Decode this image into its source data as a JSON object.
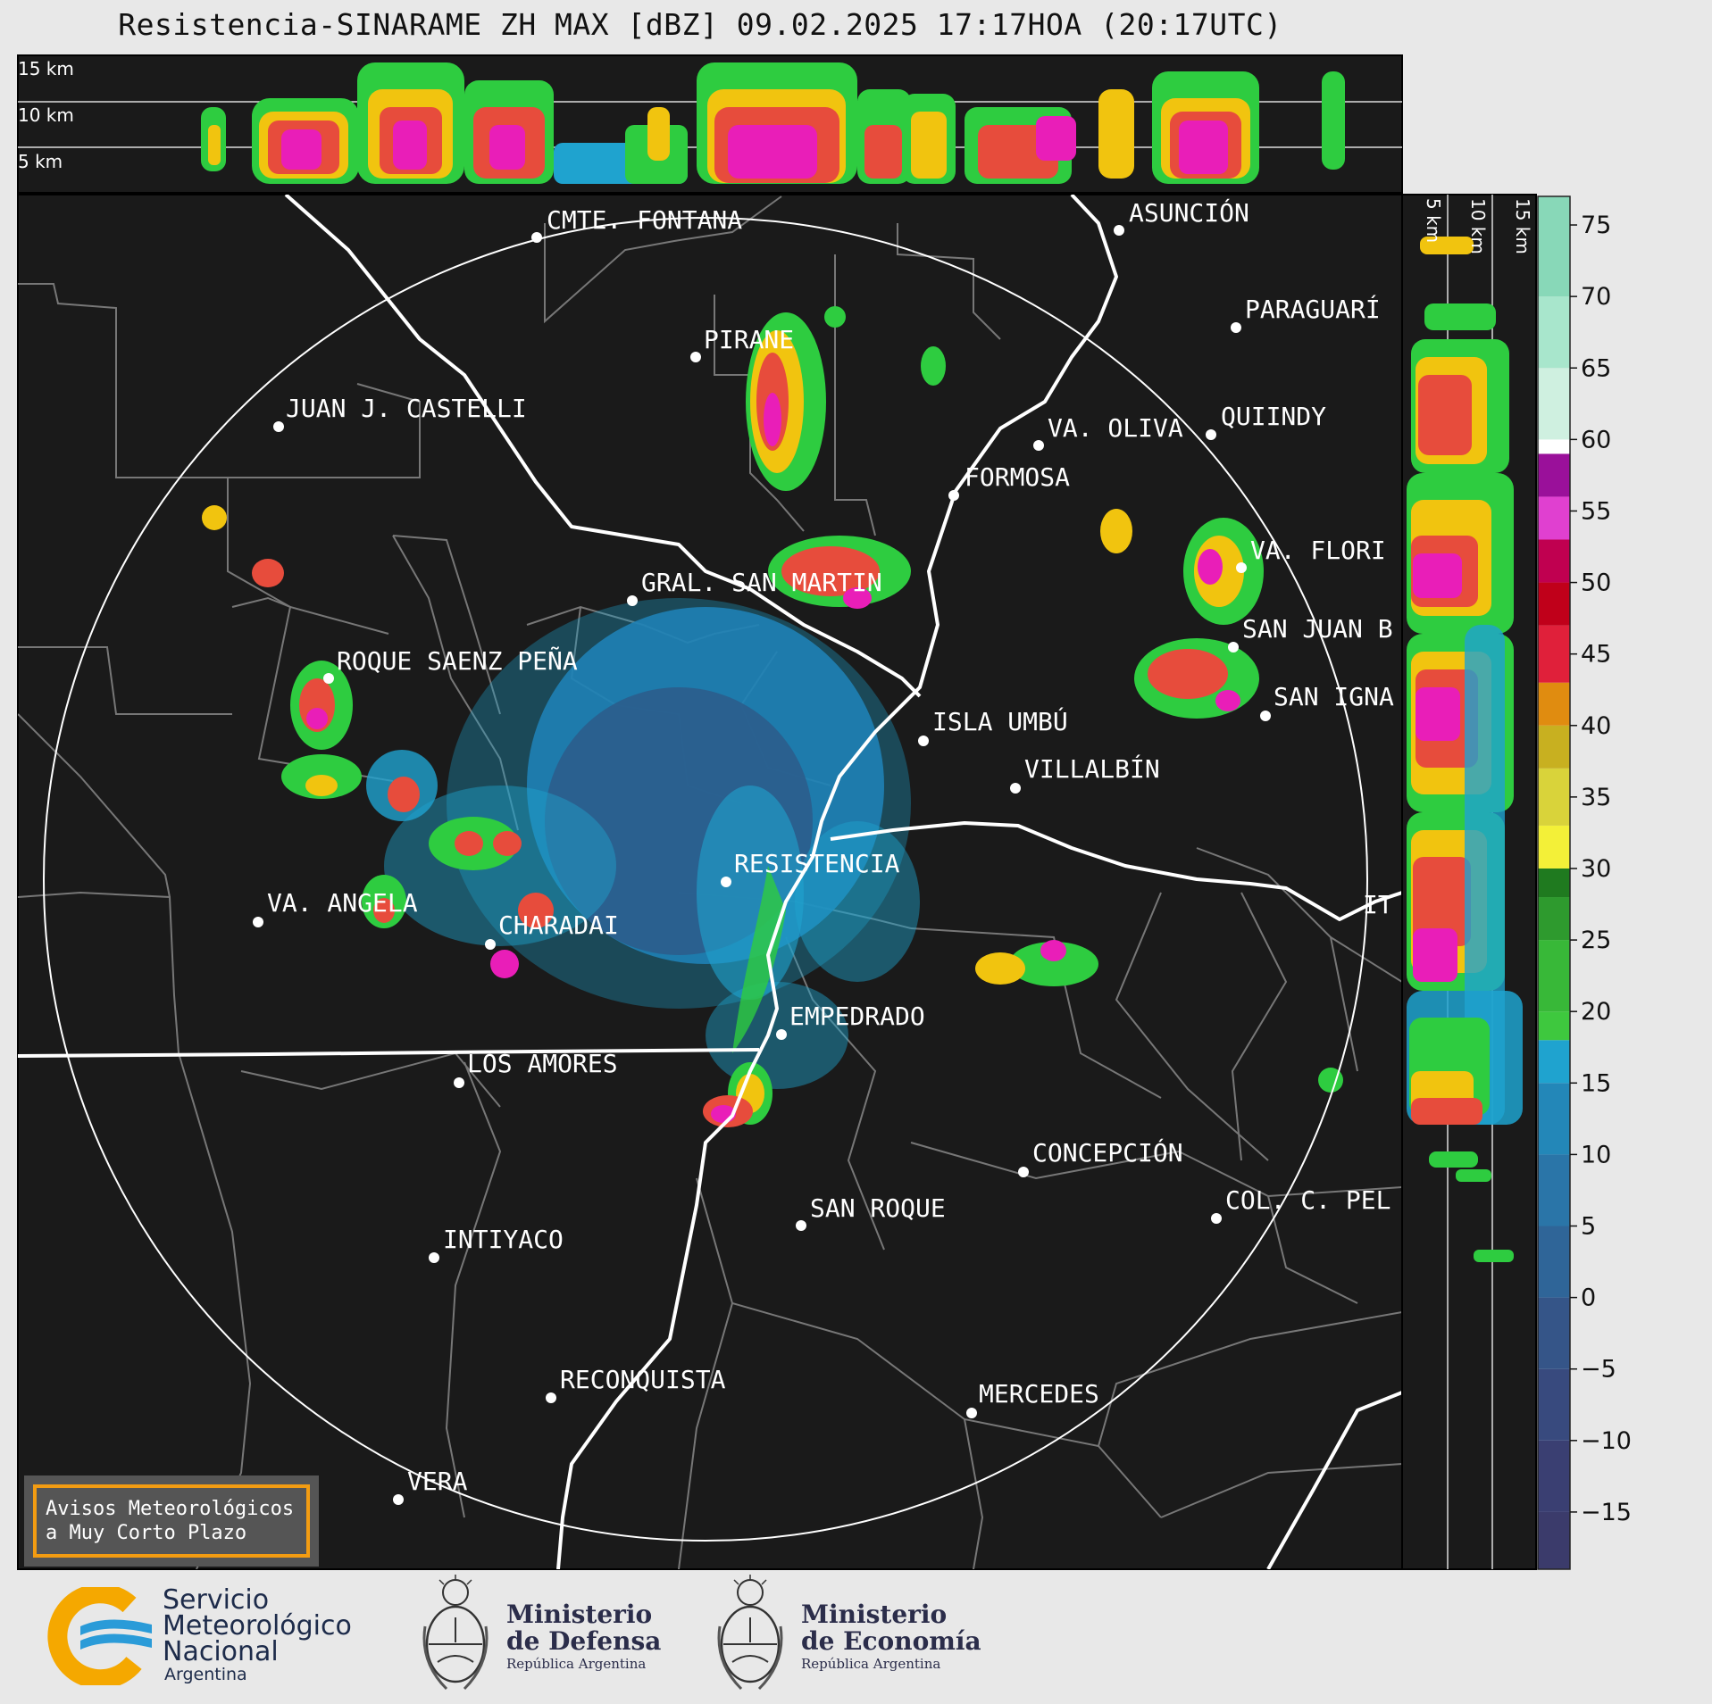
{
  "title": "Resistencia-SINARAME ZH MAX [dBZ] 09.02.2025 17:17HOA (20:17UTC)",
  "top_profile": {
    "km_labels": [
      "15 km",
      "10 km",
      "5 km"
    ]
  },
  "side_profile": {
    "km_labels": [
      "5 km",
      "10 km",
      "15 km"
    ]
  },
  "colorbar": {
    "ticks": [
      "75",
      "70",
      "65",
      "60",
      "55",
      "50",
      "45",
      "40",
      "35",
      "30",
      "25",
      "20",
      "15",
      "10",
      "5",
      "0",
      "−5",
      "−10",
      "−15"
    ],
    "unit": "dBZ"
  },
  "cities": [
    {
      "name": "CMTE. FONTANA"
    },
    {
      "name": "ASUNCIÓN"
    },
    {
      "name": "PARAGUARÍ"
    },
    {
      "name": "PIRANE"
    },
    {
      "name": "JUAN J. CASTELLI"
    },
    {
      "name": "VA. OLIVA"
    },
    {
      "name": "QUIINDY"
    },
    {
      "name": "FORMOSA"
    },
    {
      "name": "VA. FLORI"
    },
    {
      "name": "GRAL. SAN MARTIN"
    },
    {
      "name": "SAN JUAN B"
    },
    {
      "name": "ROQUE SAENZ PEÑA"
    },
    {
      "name": "SAN IGNA"
    },
    {
      "name": "ISLA UMBÚ"
    },
    {
      "name": "VILLALBÍN"
    },
    {
      "name": "RESISTENCIA"
    },
    {
      "name": "VA. ANGELA"
    },
    {
      "name": "CHARADAI"
    },
    {
      "name": "IT"
    },
    {
      "name": "EMPEDRADO"
    },
    {
      "name": "LOS AMORES"
    },
    {
      "name": "CONCEPCIÓN"
    },
    {
      "name": "SAN ROQUE"
    },
    {
      "name": "COL. C. PEL"
    },
    {
      "name": "INTIYACO"
    },
    {
      "name": "RECONQUISTA"
    },
    {
      "name": "MERCEDES"
    },
    {
      "name": "VERA"
    }
  ],
  "aviso": {
    "line1": "Avisos Meteorológicos",
    "line2": "a Muy Corto Plazo"
  },
  "logos": {
    "smn": {
      "line1": "Servicio",
      "line2": "Meteorológico",
      "line3": "Nacional",
      "line4": "Argentina"
    },
    "defensa": {
      "line1": "Ministerio",
      "line2": "de Defensa",
      "line3": "República Argentina"
    },
    "economia": {
      "line1": "Ministerio",
      "line2": "de Economía",
      "line3": "República Argentina"
    }
  },
  "colors": {
    "background": "#1a1a1a",
    "accent": "#f39c12",
    "river": "#ffffff",
    "border": "#777777"
  }
}
